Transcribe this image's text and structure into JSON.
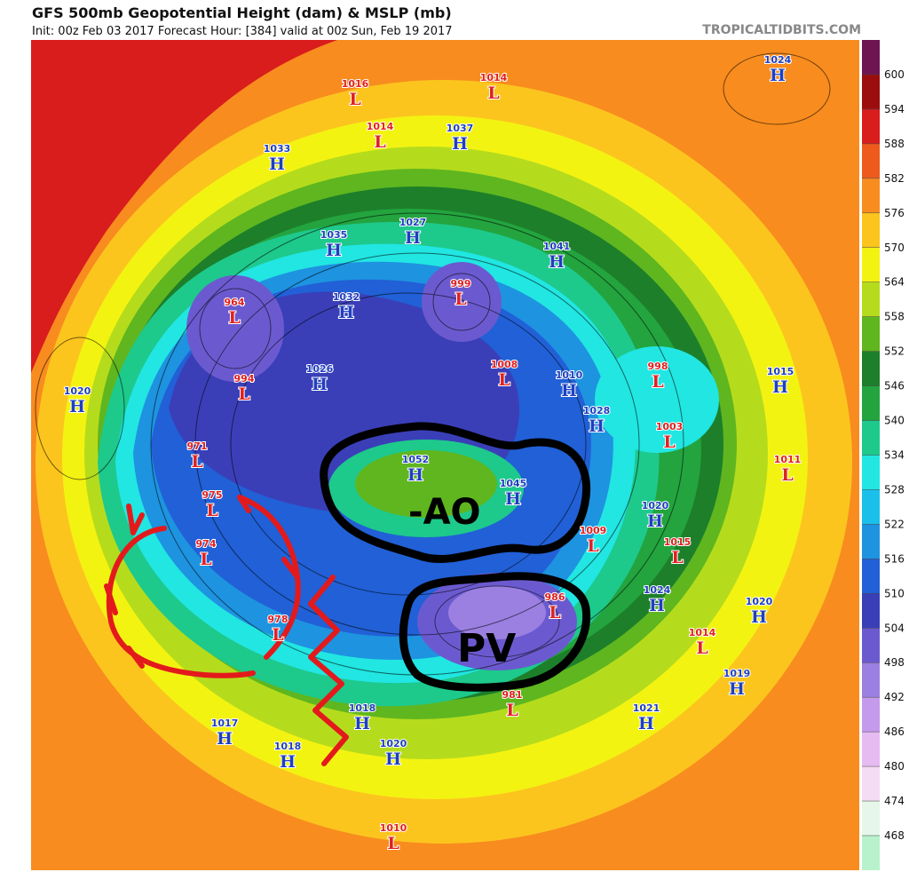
{
  "header": {
    "title": "GFS 500mb Geopotential Height (dam) & MSLP (mb)",
    "subtitle": "Init: 00z Feb 03 2017   Forecast Hour: [384]   valid at 00z Sun, Feb 19 2017",
    "brand": "TROPICALTIDBITS.COM"
  },
  "colorbar": {
    "labels": [
      600,
      594,
      588,
      582,
      576,
      570,
      564,
      558,
      552,
      546,
      540,
      534,
      528,
      522,
      516,
      510,
      504,
      498,
      492,
      486,
      480,
      474,
      468
    ],
    "colors": [
      "#6e1450",
      "#9c0d0d",
      "#d91c1c",
      "#ee5a1c",
      "#f88c1e",
      "#fcc51e",
      "#f3f312",
      "#b5dc1c",
      "#5fb61f",
      "#1d7f2a",
      "#23a43e",
      "#1ec98c",
      "#21e6e2",
      "#1ac0ea",
      "#1e93e0",
      "#2160d6",
      "#3a3fb8",
      "#6b5acf",
      "#9b80e2",
      "#c49bec",
      "#e6bbf2",
      "#f4dcf4",
      "#e6f7ea",
      "#b8f2cc"
    ]
  },
  "centers": [
    {
      "kind": "H",
      "value": 1024
    },
    {
      "kind": "L",
      "value": 1016
    },
    {
      "kind": "L",
      "value": 1014
    },
    {
      "kind": "L",
      "value": 1014
    },
    {
      "kind": "H",
      "value": 1037
    },
    {
      "kind": "H",
      "value": 1033
    },
    {
      "kind": "H",
      "value": 1035
    },
    {
      "kind": "H",
      "value": 1027
    },
    {
      "kind": "L",
      "value": 999
    },
    {
      "kind": "L",
      "value": 964
    },
    {
      "kind": "H",
      "value": 1032
    },
    {
      "kind": "H",
      "value": 1041
    },
    {
      "kind": "L",
      "value": 994
    },
    {
      "kind": "H",
      "value": 1026
    },
    {
      "kind": "L",
      "value": 1008
    },
    {
      "kind": "L",
      "value": 998
    },
    {
      "kind": "H",
      "value": 1015
    },
    {
      "kind": "H",
      "value": 1020
    },
    {
      "kind": "H",
      "value": 1010
    },
    {
      "kind": "H",
      "value": 1028
    },
    {
      "kind": "L",
      "value": 1003
    },
    {
      "kind": "L",
      "value": 971
    },
    {
      "kind": "L",
      "value": 975
    },
    {
      "kind": "H",
      "value": 1052
    },
    {
      "kind": "H",
      "value": 1045
    },
    {
      "kind": "H",
      "value": 1020
    },
    {
      "kind": "L",
      "value": 1011
    },
    {
      "kind": "L",
      "value": 974
    },
    {
      "kind": "L",
      "value": 1009
    },
    {
      "kind": "L",
      "value": 1015
    },
    {
      "kind": "L",
      "value": 978
    },
    {
      "kind": "L",
      "value": 986
    },
    {
      "kind": "H",
      "value": 1024
    },
    {
      "kind": "H",
      "value": 1020
    },
    {
      "kind": "L",
      "value": 1014
    },
    {
      "kind": "H",
      "value": 1019
    },
    {
      "kind": "L",
      "value": 981
    },
    {
      "kind": "H",
      "value": 1018
    },
    {
      "kind": "H",
      "value": 1021
    },
    {
      "kind": "H",
      "value": 1017
    },
    {
      "kind": "H",
      "value": 1018
    },
    {
      "kind": "H",
      "value": 1020
    },
    {
      "kind": "L",
      "value": 1010
    }
  ],
  "annotations": {
    "ao": "-AO",
    "pv": "PV"
  }
}
